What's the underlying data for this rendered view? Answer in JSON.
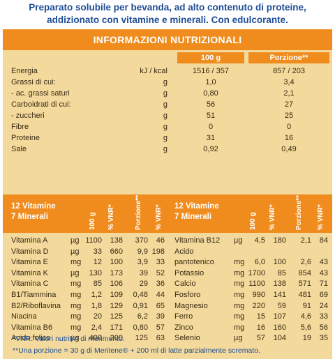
{
  "intro": {
    "line1": "Preparato solubile per bevanda, ad alto contenuto di proteine,",
    "line2": "addizionato con vitamine e minerali. Con edulcorante."
  },
  "title": "INFORMAZIONI NUTRIZIONALI",
  "headers": {
    "per100": "100 g",
    "portion": "Porzione**"
  },
  "nutrition": [
    {
      "name": "Energia",
      "unit": "kJ / kcal",
      "per100": "1516 / 357",
      "portion": "857 / 203"
    },
    {
      "name": "Grassi di cui:",
      "unit": "g",
      "per100": "1,0",
      "portion": "3,4"
    },
    {
      "name": "- ac. grassi saturi",
      "unit": "g",
      "per100": "0,80",
      "portion": "2,1"
    },
    {
      "name": "Carboidrati di cui:",
      "unit": "g",
      "per100": "56",
      "portion": "27"
    },
    {
      "name": "- zuccheri",
      "unit": "g",
      "per100": "51",
      "portion": "25"
    },
    {
      "name": "Fibre",
      "unit": "g",
      "per100": "0",
      "portion": "0"
    },
    {
      "name": "Proteine",
      "unit": "g",
      "per100": "31",
      "portion": "16"
    },
    {
      "name": "Sale",
      "unit": "g",
      "per100": "0,92",
      "portion": "0,49"
    }
  ],
  "vit_head": {
    "left_group": "12 Vitamine\n7 Minerali",
    "right_group": "12 Vitamine\n7 Minerali",
    "c100": "100 g",
    "vnr": "% VNR*",
    "portion": "Porzione**",
    "vnr2": "% VNR*"
  },
  "vitamins_left": [
    {
      "name": "Vitamina A",
      "unit": "µg",
      "v100": "1100",
      "vnr": "138",
      "por": "370",
      "vnr2": "46"
    },
    {
      "name": "Vitamina D",
      "unit": "µg",
      "v100": "33",
      "vnr": "660",
      "por": "9,9",
      "vnr2": "198"
    },
    {
      "name": "Vitamina E",
      "unit": "mg",
      "v100": "12",
      "vnr": "100",
      "por": "3,9",
      "vnr2": "33"
    },
    {
      "name": "Vitamina K",
      "unit": "µg",
      "v100": "130",
      "vnr": "173",
      "por": "39",
      "vnr2": "52"
    },
    {
      "name": "Vitamina C",
      "unit": "mg",
      "v100": "85",
      "vnr": "106",
      "por": "29",
      "vnr2": "36"
    },
    {
      "name": "B1/Tiammina",
      "unit": "mg",
      "v100": "1,2",
      "vnr": "109",
      "por": "0,48",
      "vnr2": "44"
    },
    {
      "name": "B2/Riboflavina",
      "unit": "mg",
      "v100": "1,8",
      "vnr": "129",
      "por": "0,91",
      "vnr2": "65"
    },
    {
      "name": "Niacina",
      "unit": "mg",
      "v100": "20",
      "vnr": "125",
      "por": "6,2",
      "vnr2": "39"
    },
    {
      "name": "Vitamina B6",
      "unit": "mg",
      "v100": "2,4",
      "vnr": "171",
      "por": "0,80",
      "vnr2": "57"
    },
    {
      "name": "Acido folico",
      "unit": "µg",
      "v100": "400",
      "vnr": "200",
      "por": "125",
      "vnr2": "63"
    }
  ],
  "vitamins_right": [
    {
      "name": "Vitamina B12",
      "unit": "µg",
      "v100": "4,5",
      "vnr": "180",
      "por": "2,1",
      "vnr2": "84"
    },
    {
      "name": "Acido",
      "unit": "",
      "v100": "",
      "vnr": "",
      "por": "",
      "vnr2": ""
    },
    {
      "name": "pantotenico",
      "unit": "mg",
      "v100": "6,0",
      "vnr": "100",
      "por": "2,6",
      "vnr2": "43"
    },
    {
      "name": "Potassio",
      "unit": "mg",
      "v100": "1700",
      "vnr": "85",
      "por": "854",
      "vnr2": "43"
    },
    {
      "name": "Calcio",
      "unit": "mg",
      "v100": "1100",
      "vnr": "138",
      "por": "571",
      "vnr2": "71"
    },
    {
      "name": "Fosforo",
      "unit": "mg",
      "v100": "990",
      "vnr": "141",
      "por": "481",
      "vnr2": "69"
    },
    {
      "name": "Magnesio",
      "unit": "mg",
      "v100": "220",
      "vnr": "59",
      "por": "91",
      "vnr2": "24"
    },
    {
      "name": "Ferro",
      "unit": "mg",
      "v100": "15",
      "vnr": "107",
      "por": "4,6",
      "vnr2": "33"
    },
    {
      "name": "Zinco",
      "unit": "mg",
      "v100": "16",
      "vnr": "160",
      "por": "5,6",
      "vnr2": "56"
    },
    {
      "name": "Selenio",
      "unit": "µg",
      "v100": "57",
      "vnr": "104",
      "por": "19",
      "vnr2": "35"
    }
  ],
  "footnotes": {
    "vnr": "*VNR: Valori nutritivi di riferimento.",
    "portion": "**Una porzione = 30 g di Meritene® + 200 ml di latte parzialmente scremato."
  }
}
